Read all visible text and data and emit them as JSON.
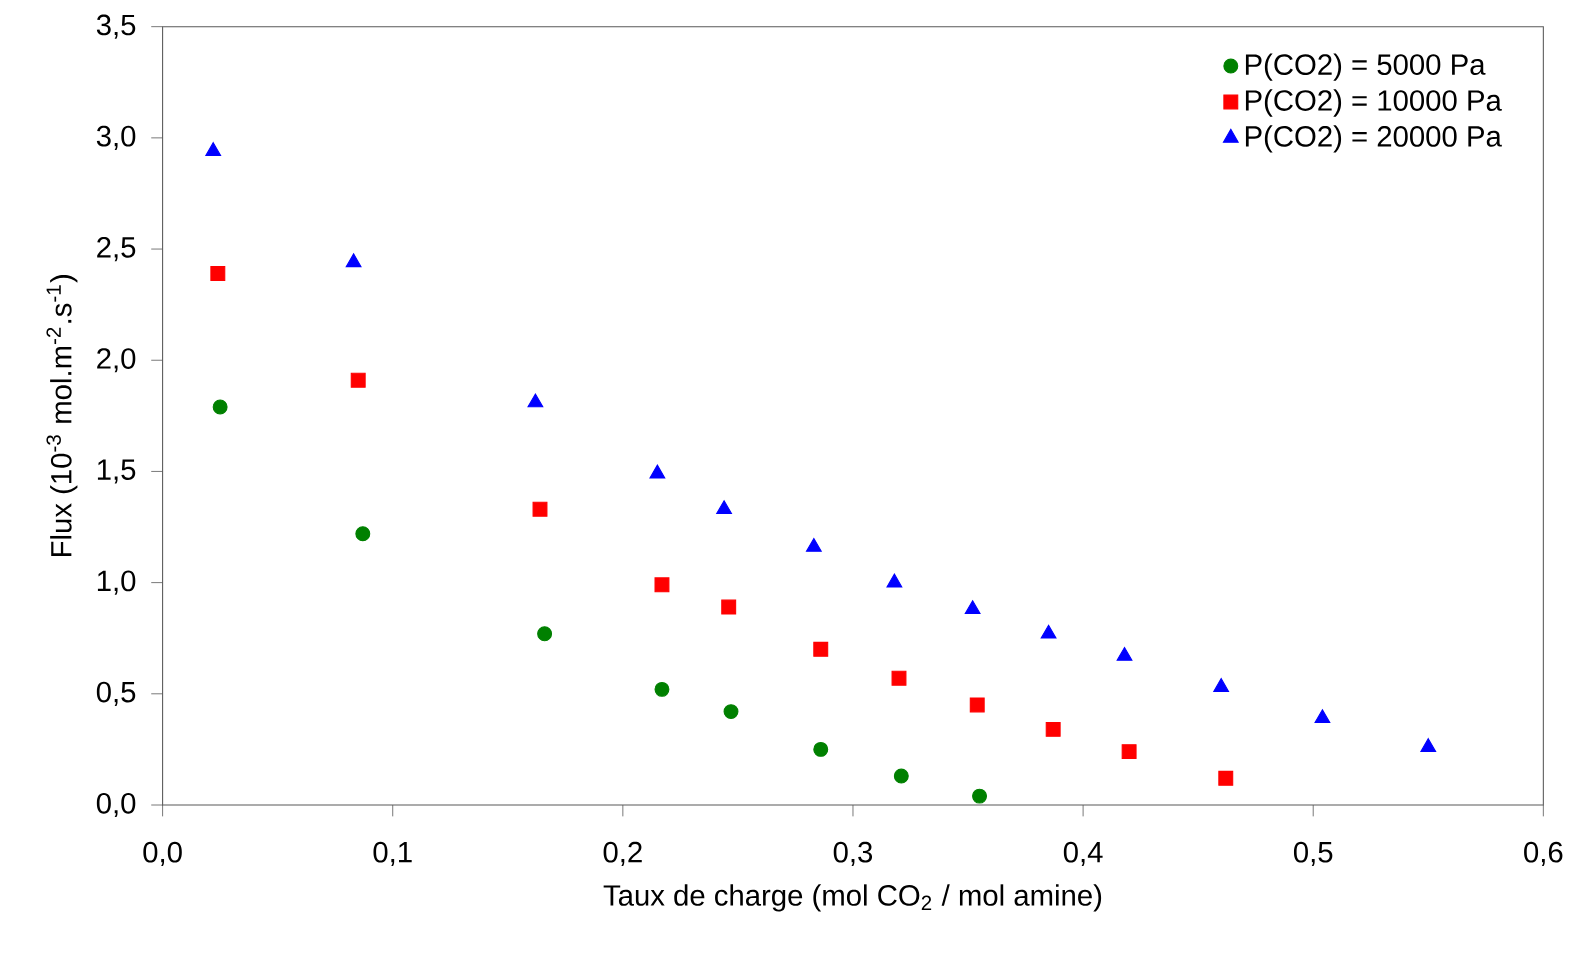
{
  "chart_data": {
    "type": "scatter",
    "xlabel": "Taux de charge (mol CO$_{2}$ / mol amine)",
    "ylabel": "Flux (10$^{-3}$ mol.m$^{-2}$.s$^{-1}$)",
    "xlim": [
      0,
      0.6
    ],
    "ylim": [
      0,
      3.5
    ],
    "xticks": [
      {
        "value": 0,
        "label": "0,0"
      },
      {
        "value": 0.1,
        "label": "0,1"
      },
      {
        "value": 0.2,
        "label": "0,2"
      },
      {
        "value": 0.3,
        "label": "0,3"
      },
      {
        "value": 0.4,
        "label": "0,4"
      },
      {
        "value": 0.5,
        "label": "0,5"
      },
      {
        "value": 0.6,
        "label": "0,6"
      }
    ],
    "yticks": [
      {
        "value": 0,
        "label": "0,0"
      },
      {
        "value": 0.5,
        "label": "0,5"
      },
      {
        "value": 1.0,
        "label": "1,0"
      },
      {
        "value": 1.5,
        "label": "1,5"
      },
      {
        "value": 2.0,
        "label": "2,0"
      },
      {
        "value": 2.5,
        "label": "2,5"
      },
      {
        "value": 3.0,
        "label": "3,0"
      },
      {
        "value": 3.5,
        "label": "3,5"
      }
    ],
    "legend": "top right",
    "grid": false,
    "series": [
      {
        "name": "P(CO2) = 5000 Pa",
        "color": "#008000",
        "marker": "circle",
        "x": [
          0.025,
          0.087,
          0.166,
          0.217,
          0.247,
          0.286,
          0.321,
          0.355
        ],
        "values": [
          1.79,
          1.22,
          0.77,
          0.52,
          0.42,
          0.25,
          0.13,
          0.04
        ]
      },
      {
        "name": "P(CO2) = 10000 Pa",
        "color": "#ff0000",
        "marker": "square",
        "x": [
          0.024,
          0.085,
          0.164,
          0.217,
          0.246,
          0.286,
          0.32,
          0.354,
          0.387,
          0.42,
          0.462
        ],
        "values": [
          2.39,
          1.91,
          1.33,
          0.99,
          0.89,
          0.7,
          0.57,
          0.45,
          0.34,
          0.24,
          0.12
        ]
      },
      {
        "name": "P(CO2) = 20000 Pa",
        "color": "#0000ff",
        "marker": "triangle",
        "x": [
          0.022,
          0.083,
          0.162,
          0.215,
          0.244,
          0.283,
          0.318,
          0.352,
          0.385,
          0.418,
          0.46,
          0.504,
          0.55
        ],
        "values": [
          2.94,
          2.44,
          1.81,
          1.49,
          1.33,
          1.16,
          1.0,
          0.88,
          0.77,
          0.67,
          0.53,
          0.39,
          0.26
        ]
      }
    ]
  }
}
